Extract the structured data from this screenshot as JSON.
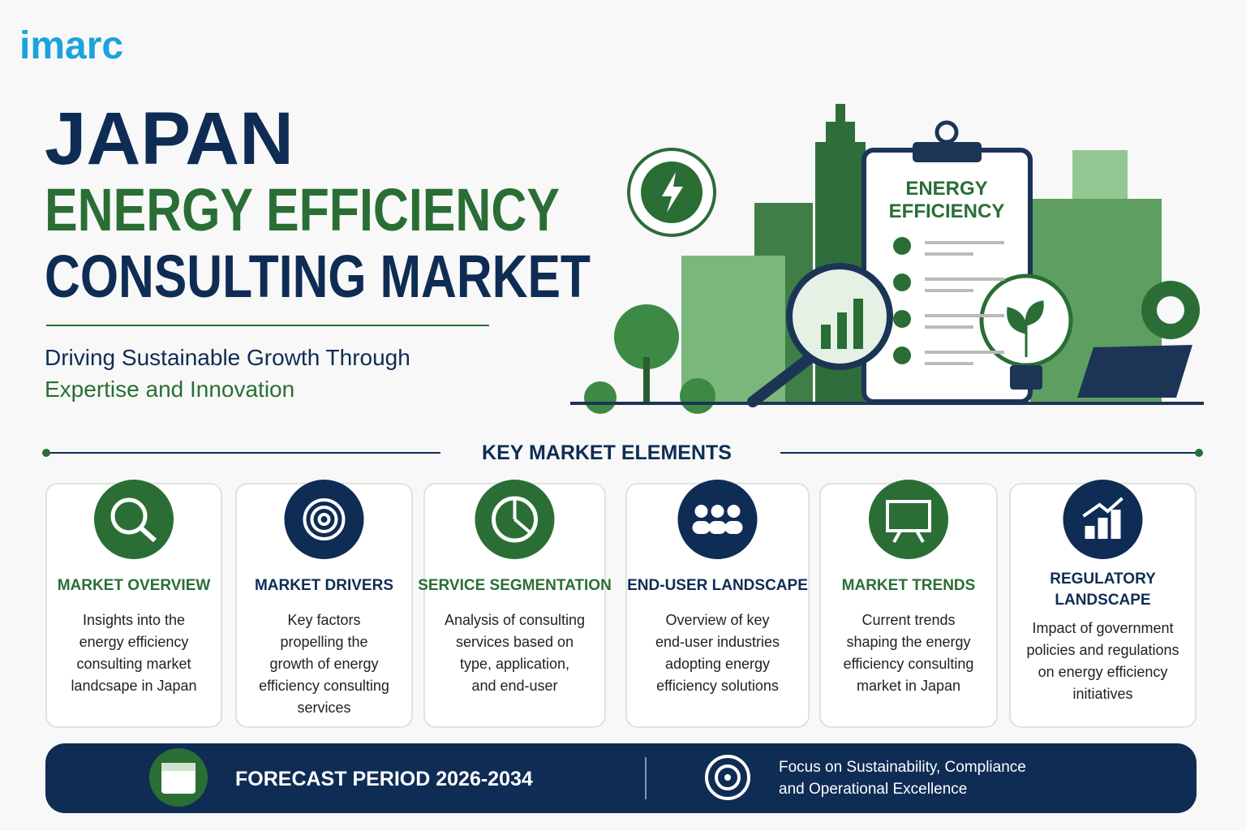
{
  "logo": "imarc",
  "header": {
    "title": "JAPAN",
    "title_line2": "ENERGY EFFICIENCY",
    "title_line3": "CONSULTING MARKET",
    "subtitle_line1": "Driving Sustainable Growth Through",
    "subtitle_line2": "Expertise and Innovation"
  },
  "illustration": {
    "clipboard_title": [
      "ENERGY",
      "EFFICIENCY"
    ]
  },
  "section_title": "KEY MARKET ELEMENTS",
  "cards": [
    {
      "title": [
        "MARKET OVERVIEW"
      ],
      "color": "#2a6e35",
      "description": [
        "Insights into the",
        "energy efficiency",
        "consulting market",
        "landcsape in Japan"
      ]
    },
    {
      "title": [
        "MARKET DRIVERS"
      ],
      "color": "#0f2c55",
      "description": [
        "Key factors",
        "propelling the",
        "growth of energy",
        "efficiency consulting",
        "services"
      ]
    },
    {
      "title": [
        "SERVICE SEGMENTATION"
      ],
      "color": "#2a6e35",
      "description": [
        "Analysis of consulting",
        "services based on",
        "type, application,",
        "and end-user"
      ]
    },
    {
      "title": [
        "END-USER LANDSCAPE"
      ],
      "color": "#0f2c55",
      "description": [
        "Overview of key",
        "end-user industries",
        "adopting energy",
        "efficiency solutions"
      ]
    },
    {
      "title": [
        "MARKET TRENDS"
      ],
      "color": "#2a6e35",
      "description": [
        "Current trends",
        "shaping the energy",
        "efficiency consulting",
        "market in Japan"
      ]
    },
    {
      "title": [
        "REGULATORY",
        "LANDSCAPE"
      ],
      "color": "#0f2c55",
      "description": [
        "Impact of government",
        "policies and regulations",
        "on energy efficiency",
        "initiatives"
      ]
    }
  ],
  "footer": {
    "forecast": "FORECAST PERIOD 2026-2034",
    "focus": [
      "Focus on Sustainability, Compliance",
      "and Operational Excellence"
    ]
  }
}
